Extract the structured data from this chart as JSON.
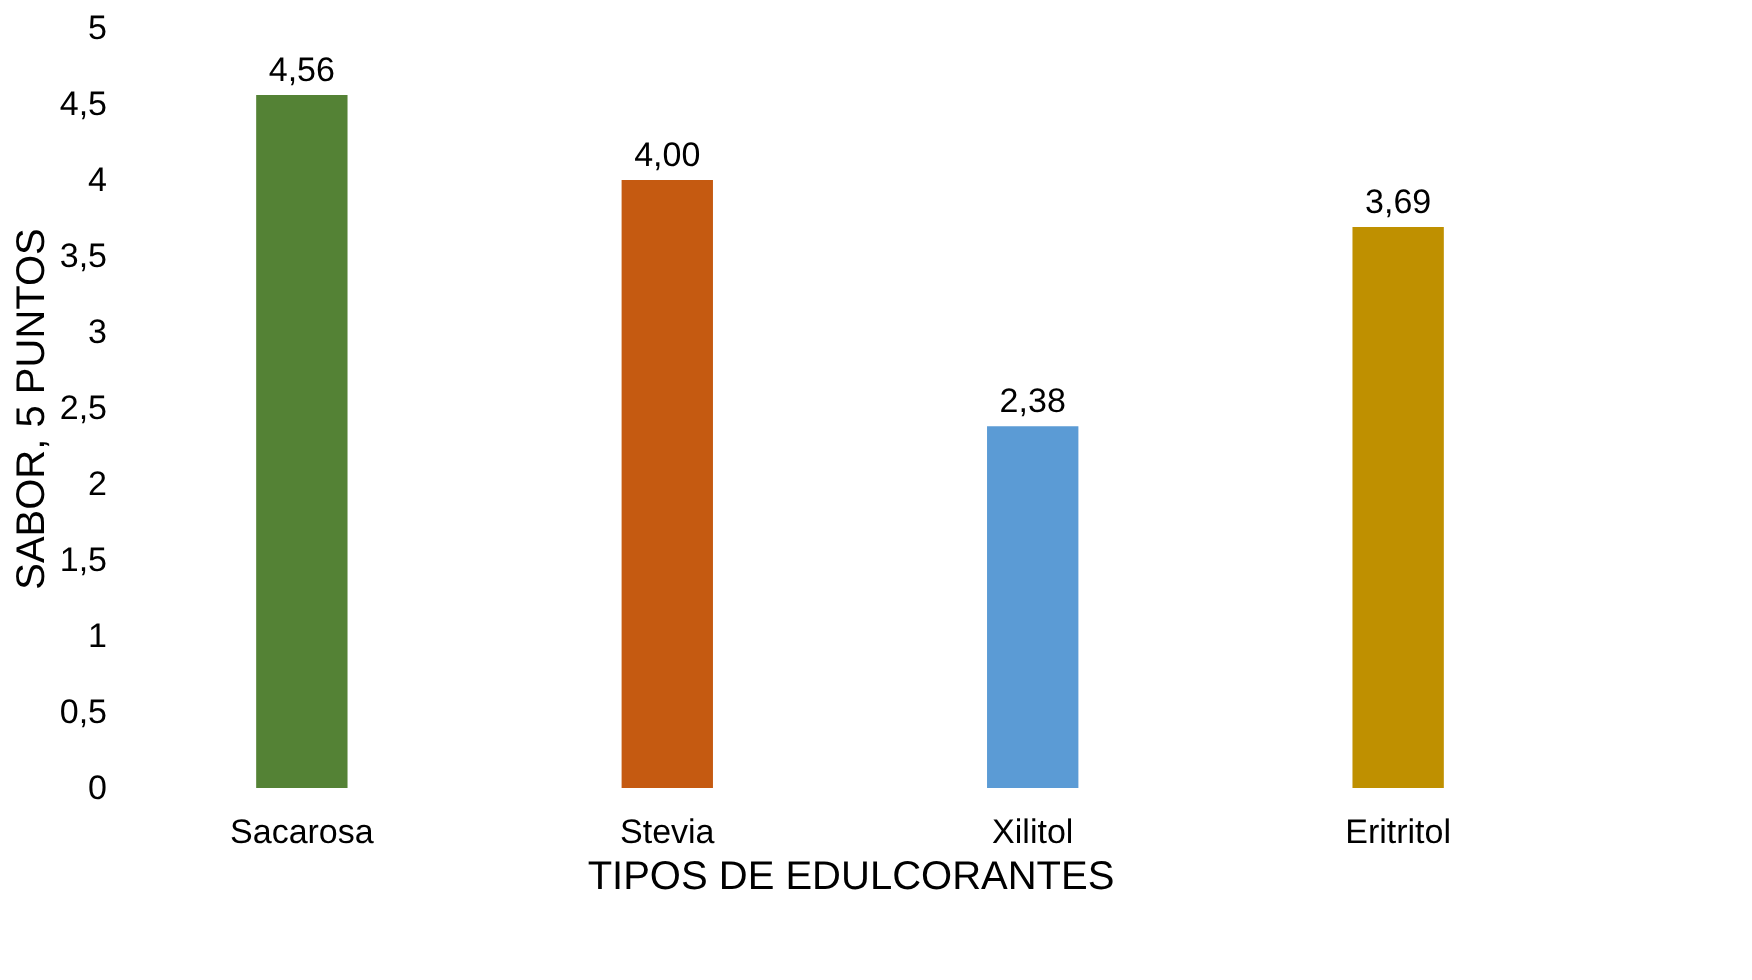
{
  "chart_data": {
    "type": "bar",
    "xlabel": "TIPOS DE EDULCORANTES",
    "ylabel": "SABOR, 5 PUNTOS",
    "categories": [
      "Sacarosa",
      "Stevia",
      "Xilitol",
      "Eritritol"
    ],
    "values": [
      4.56,
      4.0,
      2.38,
      3.69
    ],
    "colors": [
      "#548235",
      "#c55a11",
      "#5b9bd5",
      "#bf9000"
    ],
    "value_labels": [
      "4,56",
      "4,00",
      "2,38",
      "3,69"
    ],
    "ylim": [
      0,
      5
    ],
    "yticks": [
      0,
      {
        "value": 0.5,
        "label": "0,5"
      },
      1,
      {
        "value": 1.5,
        "label": "1,5"
      },
      2,
      {
        "value": 2.5,
        "label": "2,5"
      },
      3,
      {
        "value": 3.5,
        "label": "3,5"
      },
      4,
      {
        "value": 4.5,
        "label": "4,5"
      },
      5
    ],
    "grid": false
  }
}
